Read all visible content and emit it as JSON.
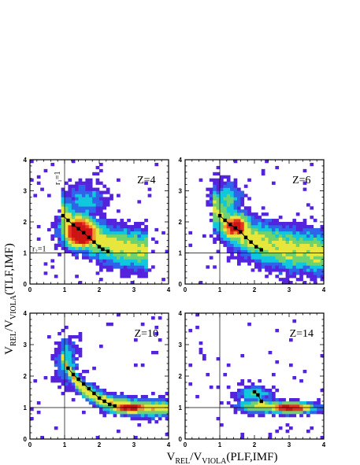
{
  "chart_data": [
    {
      "type": "heatmap",
      "panel_label": "Z=4",
      "xlim": [
        0,
        4
      ],
      "ylim": [
        0,
        4
      ],
      "x_ticks": [
        "0",
        "1",
        "2",
        "3",
        "4"
      ],
      "y_ticks": [
        "0",
        "1",
        "2",
        "3",
        "4"
      ],
      "ref_lines": {
        "x": 1,
        "y": 1
      },
      "ref_labels": {
        "r1": "r₁=1",
        "r2": "r₂=1"
      },
      "density_center": [
        1.55,
        1.55
      ],
      "points": [
        [
          0.95,
          2.2
        ],
        [
          1.1,
          2.05
        ],
        [
          1.25,
          1.9
        ],
        [
          1.4,
          1.78
        ],
        [
          1.55,
          1.65
        ],
        [
          1.7,
          1.5
        ],
        [
          1.85,
          1.35
        ],
        [
          2.0,
          1.2
        ],
        [
          2.1,
          1.12
        ],
        [
          2.25,
          1.05
        ]
      ]
    },
    {
      "type": "heatmap",
      "panel_label": "Z=6",
      "xlim": [
        0,
        4
      ],
      "ylim": [
        0,
        4
      ],
      "x_ticks": [
        "0",
        "1",
        "2",
        "3",
        "4"
      ],
      "y_ticks": [
        "0",
        "1",
        "2",
        "3",
        "4"
      ],
      "ref_lines": {
        "x": 1,
        "y": 1
      },
      "density_center": [
        1.45,
        1.85
      ],
      "points": [
        [
          1.0,
          2.2
        ],
        [
          1.15,
          2.05
        ],
        [
          1.3,
          1.92
        ],
        [
          1.45,
          1.8
        ],
        [
          1.6,
          1.68
        ],
        [
          1.75,
          1.5
        ],
        [
          1.9,
          1.35
        ],
        [
          2.05,
          1.2
        ],
        [
          2.2,
          1.1
        ]
      ]
    },
    {
      "type": "heatmap",
      "panel_label": "Z=10",
      "xlim": [
        0,
        4
      ],
      "ylim": [
        0,
        4
      ],
      "x_ticks": [
        "0",
        "1",
        "2",
        "3",
        "4"
      ],
      "y_ticks": [
        "0",
        "1",
        "2",
        "3",
        "4"
      ],
      "ref_lines": {
        "x": 1,
        "y": 1
      },
      "density_center": [
        2.9,
        1.0
      ],
      "points": [
        [
          1.1,
          2.25
        ],
        [
          1.25,
          2.05
        ],
        [
          1.4,
          1.9
        ],
        [
          1.55,
          1.75
        ],
        [
          1.7,
          1.6
        ],
        [
          1.85,
          1.45
        ],
        [
          2.0,
          1.3
        ],
        [
          2.15,
          1.2
        ],
        [
          2.3,
          1.1
        ],
        [
          2.45,
          1.05
        ]
      ]
    },
    {
      "type": "heatmap",
      "panel_label": "Z=14",
      "xlim": [
        0,
        4
      ],
      "ylim": [
        0,
        4
      ],
      "x_ticks": [
        "0",
        "1",
        "2",
        "3",
        "4"
      ],
      "y_ticks": [
        "0",
        "1",
        "2",
        "3",
        "4"
      ],
      "ref_lines": {
        "x": 1,
        "y": 1
      },
      "density_center": [
        3.0,
        1.0
      ],
      "points": [
        [
          2.0,
          1.5
        ],
        [
          2.1,
          1.4
        ],
        [
          2.2,
          1.2
        ]
      ]
    }
  ],
  "axis_labels": {
    "y": {
      "base": "V",
      "sub1": "REL",
      "mid": "/V",
      "sub2": "VIOLA",
      "tail": "(TLF,IMF)"
    },
    "x": {
      "base": "V",
      "sub1": "REL",
      "mid": "/V",
      "sub2": "VIOLA",
      "tail": "(PLF,IMF)"
    }
  },
  "colors": {
    "palette": [
      "#5522dd",
      "#2e63ea",
      "#10c8dd",
      "#6ed36e",
      "#e6e63c",
      "#f09a2e",
      "#e83222",
      "#cc1414"
    ],
    "marker": "#000000",
    "frame": "#000000"
  }
}
